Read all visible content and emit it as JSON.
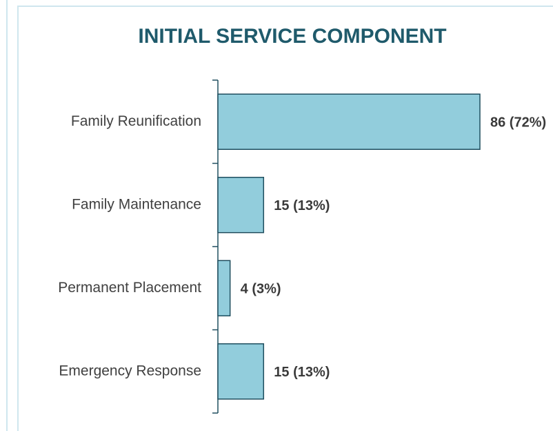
{
  "chart_data": {
    "type": "barh",
    "title": "INITIAL SERVICE COMPONENT",
    "categories": [
      "Family Reunification",
      "Family Maintenance",
      "Permanent Placement",
      "Emergency Response"
    ],
    "values": [
      86,
      15,
      4,
      15
    ],
    "value_labels": [
      "86 (72%)",
      "15 (13%)",
      "4 (3%)",
      "15 (13%)"
    ],
    "color": "#92cddc"
  }
}
